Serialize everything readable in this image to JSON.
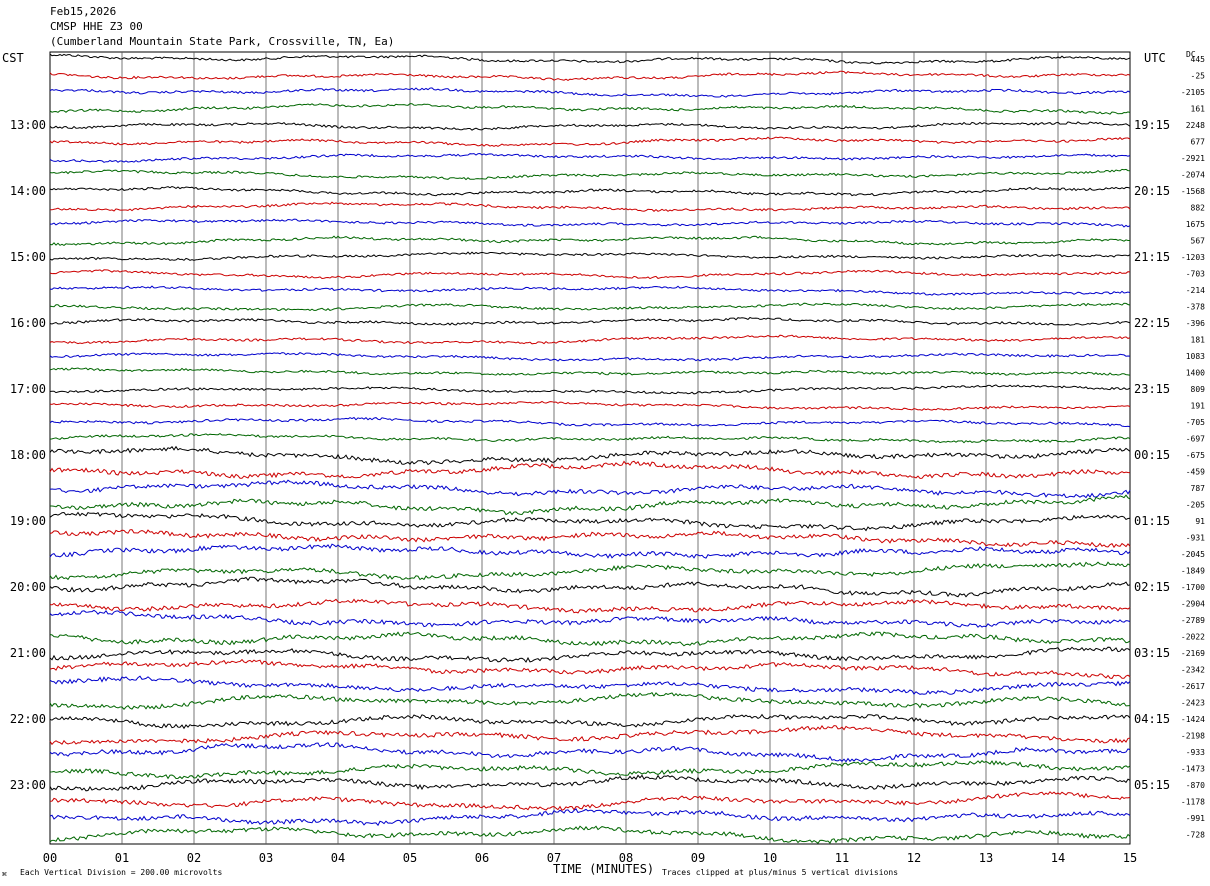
{
  "header": {
    "date": "Feb15,2026",
    "station": "CMSP HHE Z3 00",
    "location": "(Cumberland Mountain State Park, Crossville, TN, Ea)"
  },
  "left_tz": "CST",
  "right_tz": "UTC",
  "dc_label": "DC",
  "footer": {
    "scale": "Each Vertical Division =  200.00 microvolts",
    "xlabel": "TIME (MINUTES)",
    "clip": "Traces clipped at plus/minus 5 vertical divisions"
  },
  "colors": {
    "cycle": [
      "#000000",
      "#cc0000",
      "#0000cc",
      "#006600"
    ]
  },
  "chart_data": {
    "type": "line",
    "title": "CMSP HHE Z3 00",
    "xlabel": "TIME (MINUTES)",
    "xlim": [
      0,
      15
    ],
    "x_ticks": [
      "00",
      "01",
      "02",
      "03",
      "04",
      "05",
      "06",
      "07",
      "08",
      "09",
      "10",
      "11",
      "12",
      "13",
      "14",
      "15"
    ],
    "grid": "vertical lines every minute",
    "trace_count": 48,
    "hour_labels_left": [
      {
        "row": 4,
        "label": "13:00"
      },
      {
        "row": 8,
        "label": "14:00"
      },
      {
        "row": 12,
        "label": "15:00"
      },
      {
        "row": 16,
        "label": "16:00"
      },
      {
        "row": 20,
        "label": "17:00"
      },
      {
        "row": 24,
        "label": "18:00"
      },
      {
        "row": 28,
        "label": "19:00"
      },
      {
        "row": 32,
        "label": "20:00"
      },
      {
        "row": 36,
        "label": "21:00"
      },
      {
        "row": 40,
        "label": "22:00"
      },
      {
        "row": 44,
        "label": "23:00"
      }
    ],
    "hour_labels_right": [
      {
        "row": 4,
        "label": "19:15"
      },
      {
        "row": 8,
        "label": "20:15"
      },
      {
        "row": 12,
        "label": "21:15"
      },
      {
        "row": 16,
        "label": "22:15"
      },
      {
        "row": 20,
        "label": "23:15"
      },
      {
        "row": 24,
        "label": "00:15"
      },
      {
        "row": 28,
        "label": "01:15"
      },
      {
        "row": 32,
        "label": "02:15"
      },
      {
        "row": 36,
        "label": "03:15"
      },
      {
        "row": 40,
        "label": "04:15"
      },
      {
        "row": 44,
        "label": "05:15"
      }
    ],
    "dc_offsets": [
      "445",
      "-25",
      "-2105",
      "161",
      "2248",
      "677",
      "-2921",
      "-2074",
      "-1568",
      "882",
      "1675",
      "567",
      "-1203",
      "-703",
      "-214",
      "-378",
      "-396",
      "181",
      "1083",
      "1400",
      "809",
      "191",
      "-705",
      "-697",
      "-675",
      "-459",
      "787",
      "-205",
      "91",
      "-931",
      "-2045",
      "-1849",
      "-1700",
      "-2904",
      "-2789",
      "-2022",
      "-2169",
      "-2342",
      "-2617",
      "-2423",
      "-1424",
      "-2198",
      "-933",
      "-1473",
      "-870",
      "-1178",
      "-991",
      "-728"
    ]
  }
}
